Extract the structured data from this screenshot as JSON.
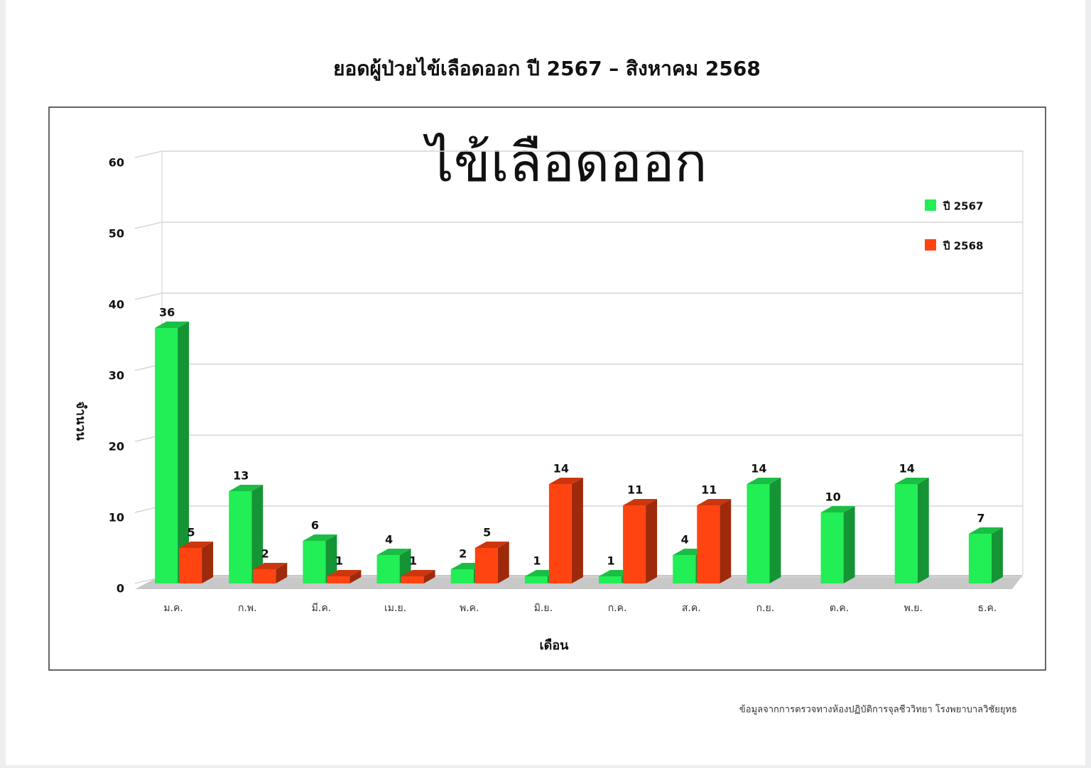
{
  "chart_data": {
    "type": "bar",
    "title": "ยอดผู้ป่วยไข้เลือดออก ปี 2567 – สิงหาคม 2568",
    "subtitle": "ไข้เลือดออก",
    "y_label": "จำนวน",
    "x_label": "เดือน",
    "note": "ข้อมูลจากการตรวจทางห้องปฏิบัติการจุลชีววิทยา โรงพยาบาลวิชัยยุทธ",
    "categories": [
      "ม.ค.",
      "ก.พ.",
      "มี.ค.",
      "เม.ย.",
      "พ.ค.",
      "มิ.ย.",
      "ก.ค.",
      "ส.ค.",
      "ก.ย.",
      "ต.ค.",
      "พ.ย.",
      "ธ.ค."
    ],
    "series": [
      {
        "name": "ปี 2567",
        "color": "#22ee55",
        "values": [
          36,
          13,
          6,
          4,
          2,
          1,
          1,
          4,
          14,
          10,
          14,
          7
        ]
      },
      {
        "name": "ปี 2568",
        "color": "#ff4411",
        "values": [
          5,
          2,
          1,
          1,
          5,
          14,
          11,
          11,
          null,
          null,
          null,
          null
        ]
      }
    ],
    "ylim": [
      0,
      60
    ],
    "yticks": [
      0,
      10,
      20,
      30,
      40,
      50,
      60
    ],
    "grid": true,
    "legend": "top-right"
  }
}
